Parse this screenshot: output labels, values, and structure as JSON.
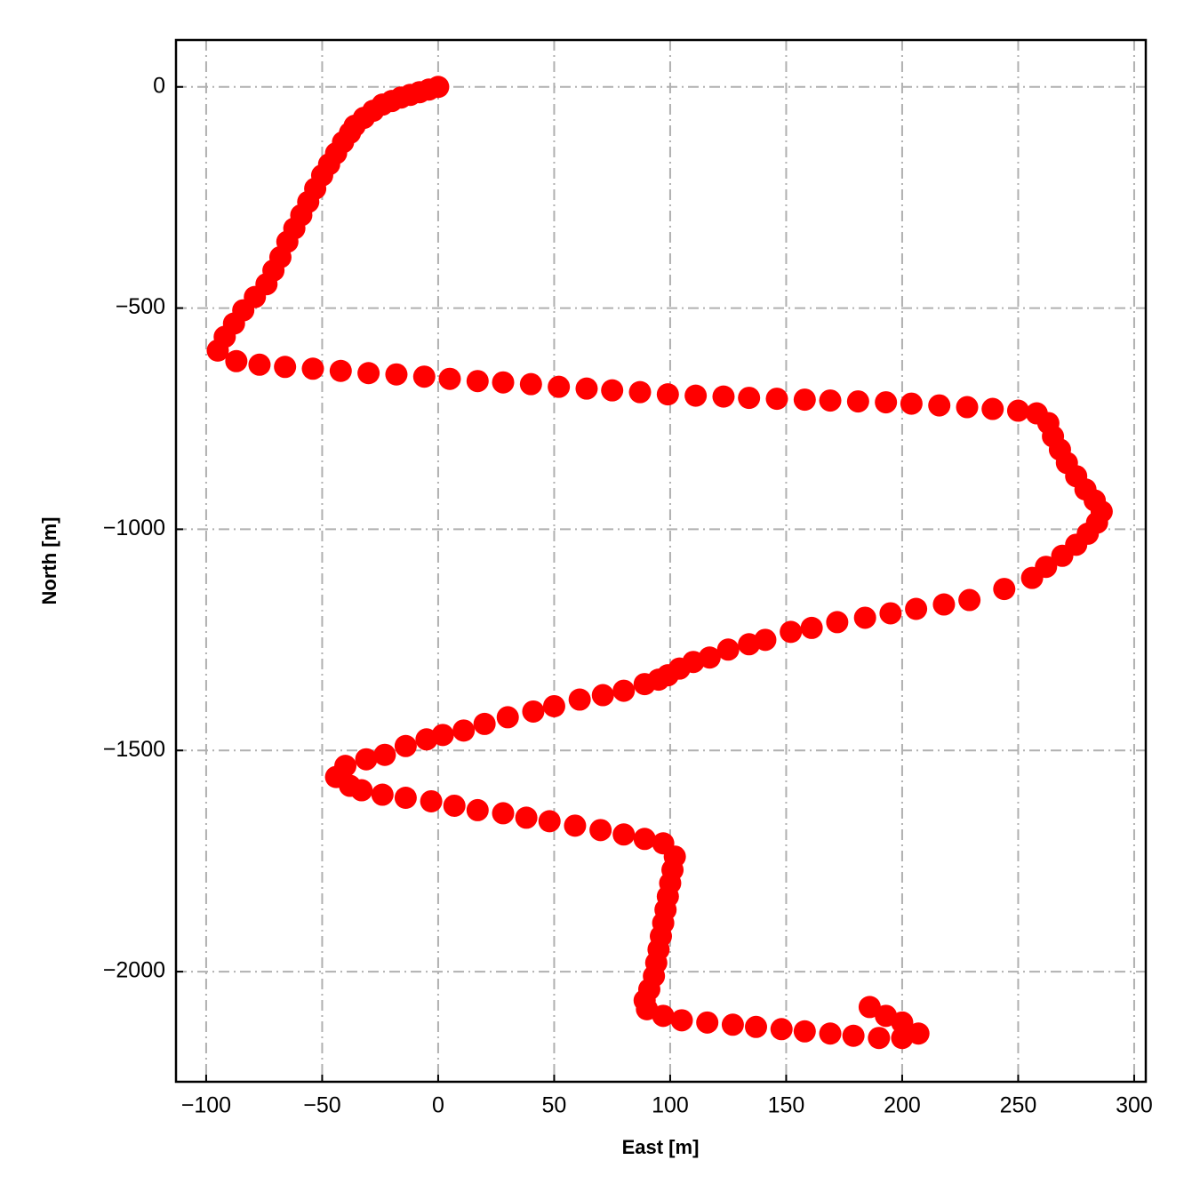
{
  "chart_data": {
    "type": "scatter",
    "x_label": "East [m]",
    "y_label": "North [m]",
    "xlim": [
      -113,
      305
    ],
    "ylim": [
      -2249,
      106
    ],
    "xticks": [
      {
        "value": -100,
        "label": "−100"
      },
      {
        "value": -50,
        "label": "−50"
      },
      0,
      50,
      100,
      150,
      200,
      250,
      300
    ],
    "yticks": [
      0,
      {
        "value": -500,
        "label": "−500"
      },
      {
        "value": -1000,
        "label": "−1000"
      },
      {
        "value": -1500,
        "label": "−1500"
      },
      {
        "value": -2000,
        "label": "−2000"
      }
    ],
    "grid": true,
    "color": "#ff0000",
    "x": [
      0,
      -4,
      -8,
      -12,
      -16,
      -20,
      -24,
      -28,
      -32,
      -36,
      -38,
      -41,
      -44,
      -47,
      -50,
      -53,
      -56,
      -59,
      -62,
      -65,
      -68,
      -71,
      -74,
      -79,
      -84,
      -88,
      -92,
      -95,
      -87,
      -77,
      -66,
      -54,
      -42,
      -30,
      -18,
      -6,
      5,
      17,
      28,
      40,
      52,
      64,
      75,
      87,
      99,
      111,
      123,
      134,
      146,
      158,
      169,
      181,
      193,
      204,
      216,
      228,
      239,
      250,
      258,
      263,
      265,
      268,
      271,
      275,
      279,
      283,
      286,
      284,
      280,
      275,
      269,
      262,
      256,
      244,
      229,
      218,
      206,
      195,
      184,
      172,
      161,
      152,
      141,
      134,
      125,
      117,
      110,
      104,
      99,
      95,
      89,
      80,
      71,
      61,
      50,
      41,
      30,
      20,
      11,
      2,
      -5,
      -14,
      -23,
      -31,
      -40,
      -44,
      -38,
      -33,
      -24,
      -14,
      -3,
      7,
      17,
      28,
      38,
      48,
      59,
      70,
      80,
      89,
      97,
      102,
      101,
      100,
      99,
      98,
      97,
      96,
      95,
      94,
      93,
      91,
      89,
      90,
      97,
      105,
      116,
      127,
      137,
      148,
      158,
      169,
      179,
      190,
      200,
      207,
      200,
      193,
      186
    ],
    "y": [
      0,
      -6,
      -12,
      -18,
      -24,
      -32,
      -40,
      -54,
      -70,
      -88,
      -104,
      -125,
      -150,
      -175,
      -200,
      -230,
      -260,
      -290,
      -320,
      -350,
      -385,
      -415,
      -446,
      -475,
      -505,
      -535,
      -565,
      -596,
      -620,
      -628,
      -633,
      -637,
      -642,
      -647,
      -650,
      -655,
      -660,
      -665,
      -668,
      -672,
      -678,
      -682,
      -686,
      -690,
      -695,
      -698,
      -700,
      -703,
      -705,
      -707,
      -709,
      -711,
      -713,
      -716,
      -720,
      -724,
      -728,
      -732,
      -738,
      -760,
      -790,
      -820,
      -850,
      -880,
      -910,
      -935,
      -960,
      -985,
      -1010,
      -1035,
      -1060,
      -1085,
      -1110,
      -1135,
      -1160,
      -1170,
      -1180,
      -1190,
      -1200,
      -1210,
      -1223,
      -1232,
      -1250,
      -1260,
      -1272,
      -1290,
      -1300,
      -1315,
      -1330,
      -1340,
      -1350,
      -1365,
      -1375,
      -1385,
      -1400,
      -1412,
      -1425,
      -1440,
      -1455,
      -1465,
      -1475,
      -1490,
      -1510,
      -1520,
      -1535,
      -1560,
      -1580,
      -1590,
      -1600,
      -1607,
      -1615,
      -1625,
      -1635,
      -1642,
      -1652,
      -1660,
      -1670,
      -1680,
      -1690,
      -1700,
      -1710,
      -1740,
      -1770,
      -1800,
      -1830,
      -1860,
      -1890,
      -1920,
      -1950,
      -1980,
      -2010,
      -2040,
      -2065,
      -2085,
      -2100,
      -2110,
      -2115,
      -2120,
      -2125,
      -2130,
      -2135,
      -2140,
      -2145,
      -2150,
      -2150,
      -2140,
      -2115,
      -2100,
      -2080
    ]
  }
}
